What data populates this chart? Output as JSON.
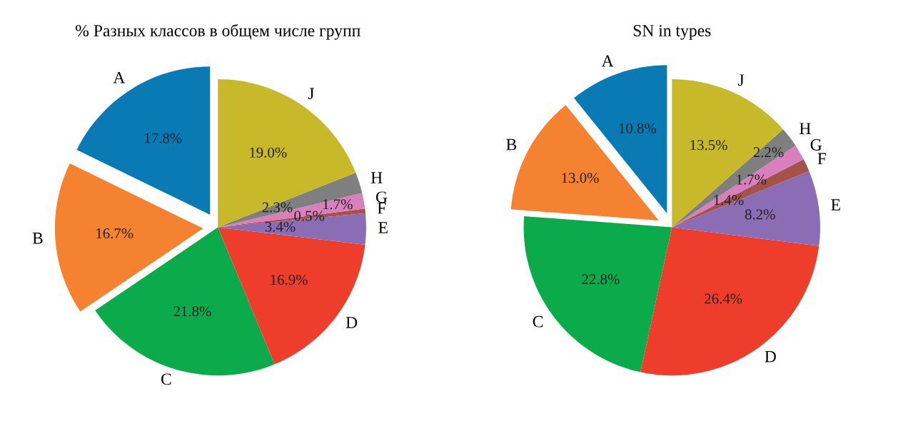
{
  "chart_data": [
    {
      "type": "pie",
      "title": "% Разных классов в общем числе групп",
      "categories": [
        "A",
        "B",
        "C",
        "D",
        "E",
        "F",
        "G",
        "H",
        "J"
      ],
      "values": [
        17.8,
        16.7,
        21.8,
        16.9,
        3.4,
        0.5,
        1.7,
        2.3,
        19.0
      ],
      "value_labels": [
        "17.8%",
        "16.7%",
        "21.8%",
        "16.9%",
        "3.4%",
        "0.5%",
        "1.7%",
        "2.3%",
        "19.0%"
      ],
      "colors": [
        "#0a7ab5",
        "#f58231",
        "#0bab4b",
        "#ee3e2b",
        "#8b6db5",
        "#a5524a",
        "#d97fbd",
        "#7f7f7f",
        "#c8b92a"
      ]
    },
    {
      "type": "pie",
      "title": "SN in types",
      "categories": [
        "A",
        "B",
        "C",
        "D",
        "E",
        "F",
        "G",
        "H",
        "J"
      ],
      "values": [
        10.8,
        13.0,
        22.8,
        26.4,
        8.2,
        1.4,
        1.7,
        2.2,
        13.5
      ],
      "value_labels": [
        "10.8%",
        "13.0%",
        "22.8%",
        "26.4%",
        "8.2%",
        "1.4%",
        "1.7%",
        "2.2%",
        "13.5%"
      ],
      "colors": [
        "#0a7ab5",
        "#f58231",
        "#0bab4b",
        "#ee3e2b",
        "#8b6db5",
        "#a5524a",
        "#d97fbd",
        "#7f7f7f",
        "#c8b92a"
      ]
    }
  ]
}
